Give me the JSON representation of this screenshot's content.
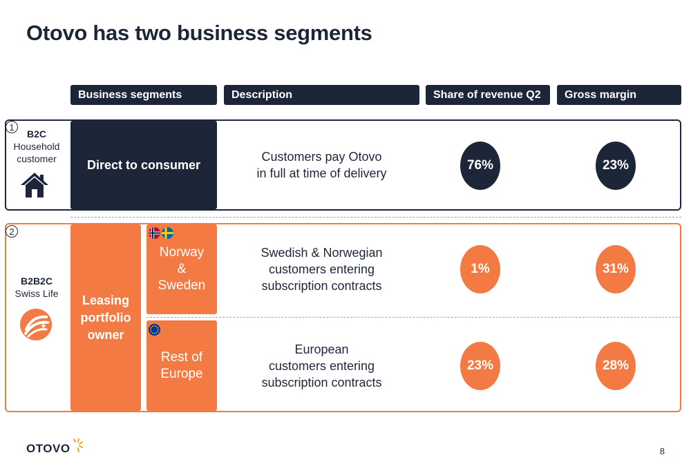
{
  "title": "Otovo has two business segments",
  "headers": {
    "segments": "Business segments",
    "description": "Description",
    "revenue": "Share of revenue Q2",
    "margin": "Gross margin"
  },
  "rows": [
    {
      "number": "1",
      "customer_type": "B2C",
      "customer_label_1": "Household",
      "customer_label_2": "customer",
      "icon": "house-icon",
      "segment": "Direct to consumer",
      "description_1": "Customers pay Otovo",
      "description_2": "in full at time of delivery",
      "revenue": "76%",
      "margin": "23%"
    },
    {
      "number": "2",
      "customer_type": "B2B2C",
      "customer_label_1": "Swiss Life",
      "icon": "swiss-life-logo-icon",
      "segment_1": "Leasing",
      "segment_2": "portfolio",
      "segment_3": "owner",
      "subrows": [
        {
          "region_1": "Norway",
          "region_2": "&",
          "region_3": "Sweden",
          "flags": [
            "norway-flag-icon",
            "sweden-flag-icon"
          ],
          "description_1": "Swedish & Norwegian",
          "description_2": "customers entering",
          "description_3": "subscription contracts",
          "revenue": "1%",
          "margin": "31%"
        },
        {
          "region_1": "Rest of",
          "region_2": "Europe",
          "flags": [
            "eu-flag-icon"
          ],
          "description_1": "European",
          "description_2": "customers entering",
          "description_3": "subscription contracts",
          "revenue": "23%",
          "margin": "28%"
        }
      ]
    }
  ],
  "footer": {
    "logo_text": "OTOVO",
    "page_number": "8"
  },
  "colors": {
    "navy": "#1d2639",
    "orange": "#f47a43",
    "sun": "#f5a623"
  }
}
